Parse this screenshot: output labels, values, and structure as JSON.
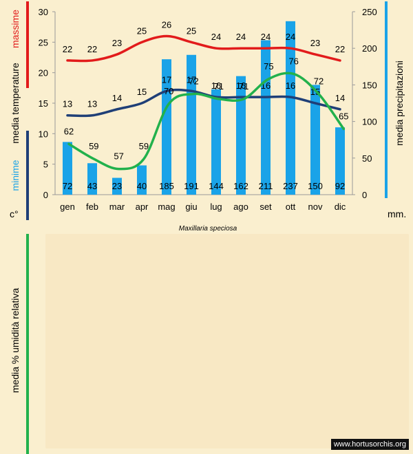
{
  "chart_data": [
    {
      "type": "bar+line",
      "title": "Maxillaria speciosa",
      "categories": [
        "gen",
        "feb",
        "mar",
        "apr",
        "mag",
        "giu",
        "lug",
        "ago",
        "set",
        "ott",
        "nov",
        "dic"
      ],
      "series": [
        {
          "name": "media precipitazioni",
          "type": "bar",
          "axis": "right",
          "values": [
            72,
            43,
            23,
            40,
            185,
            191,
            144,
            162,
            211,
            237,
            150,
            92
          ],
          "color": "#1aa3e8"
        },
        {
          "name": "massime",
          "type": "line",
          "axis": "left",
          "values": [
            22,
            22,
            23,
            25,
            26,
            25,
            24,
            24,
            24,
            24,
            23,
            22
          ],
          "color": "#e21b1b"
        },
        {
          "name": "minime",
          "type": "line",
          "axis": "left",
          "values": [
            13,
            13,
            14,
            15,
            17,
            17,
            16,
            16,
            16,
            16,
            15,
            14
          ],
          "color": "#1f3f77"
        }
      ],
      "left_axis": {
        "ticks": [
          "0",
          "5",
          "10",
          "15",
          "20",
          "25",
          "30"
        ],
        "ylim": [
          0,
          30
        ],
        "label_top": "massime",
        "label_mid": "media temperature",
        "label_bottom": "minime",
        "unit": "c°"
      },
      "right_axis": {
        "ticks": [
          "0",
          "50",
          "100",
          "150",
          "200",
          "250"
        ],
        "ylim": [
          0,
          250
        ],
        "label": "media precipitazioni",
        "unit": "mm."
      }
    },
    {
      "type": "line",
      "categories": [
        "gen",
        "feb",
        "mar",
        "apr",
        "mag",
        "giu",
        "lug",
        "ago",
        "set",
        "ott",
        "nov",
        "dic"
      ],
      "values": [
        62,
        59,
        57,
        59,
        70,
        72,
        71,
        71,
        75,
        76,
        72,
        65
      ],
      "ylabel": "media % umidità relativa",
      "color": "#22b14c"
    }
  ],
  "watermark": "www.hortusorchis.org"
}
